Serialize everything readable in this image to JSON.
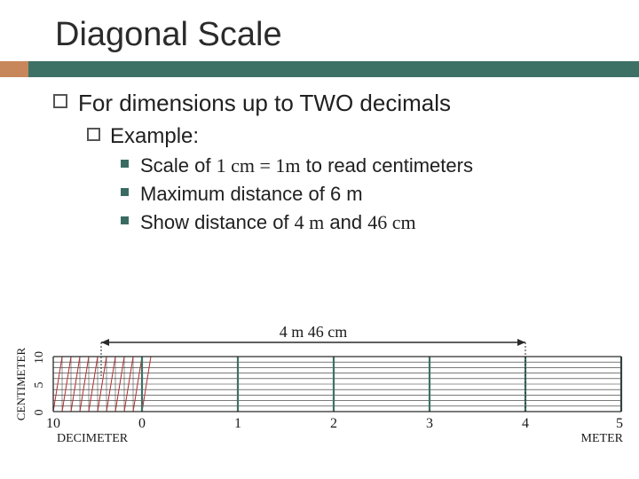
{
  "title": "Diagonal Scale",
  "body": {
    "lvl1": "For dimensions up to TWO decimals",
    "lvl2": "Example:",
    "lvl3a_pre": "Scale of ",
    "lvl3a_serif": "1 cm = 1m",
    "lvl3a_post": " to read centimeters",
    "lvl3b": "Maximum distance of 6 m",
    "lvl3c_pre": "Show distance of ",
    "lvl3c_serif1": "4 m",
    "lvl3c_mid": " and ",
    "lvl3c_serif2": "46 cm"
  },
  "diagram": {
    "dim_label": "4 m 46 cm",
    "y_axis_label": "CENTIMETER",
    "x_axis_left_label": "DECIMETER",
    "x_axis_right_label": "METER",
    "y_ticks": [
      "10",
      "5",
      "0"
    ],
    "x_main_ticks": [
      "10",
      "0",
      "1",
      "2",
      "3",
      "4",
      "5"
    ],
    "colors": {
      "hrule": "#2a2a2a",
      "diag": "#b03030",
      "tick": "#3e7166",
      "arrow": "#2a2a2a",
      "text": "#1a1a1a"
    },
    "geom": {
      "x_left_deci": 60,
      "x_zero": 160,
      "x_meter_step": 108,
      "x_five": 700,
      "y_top": 42,
      "y_bot": 104,
      "n_hrules": 11,
      "n_diag": 11
    }
  },
  "stripe": {
    "a": "#c8875a",
    "b": "#3e7166"
  }
}
